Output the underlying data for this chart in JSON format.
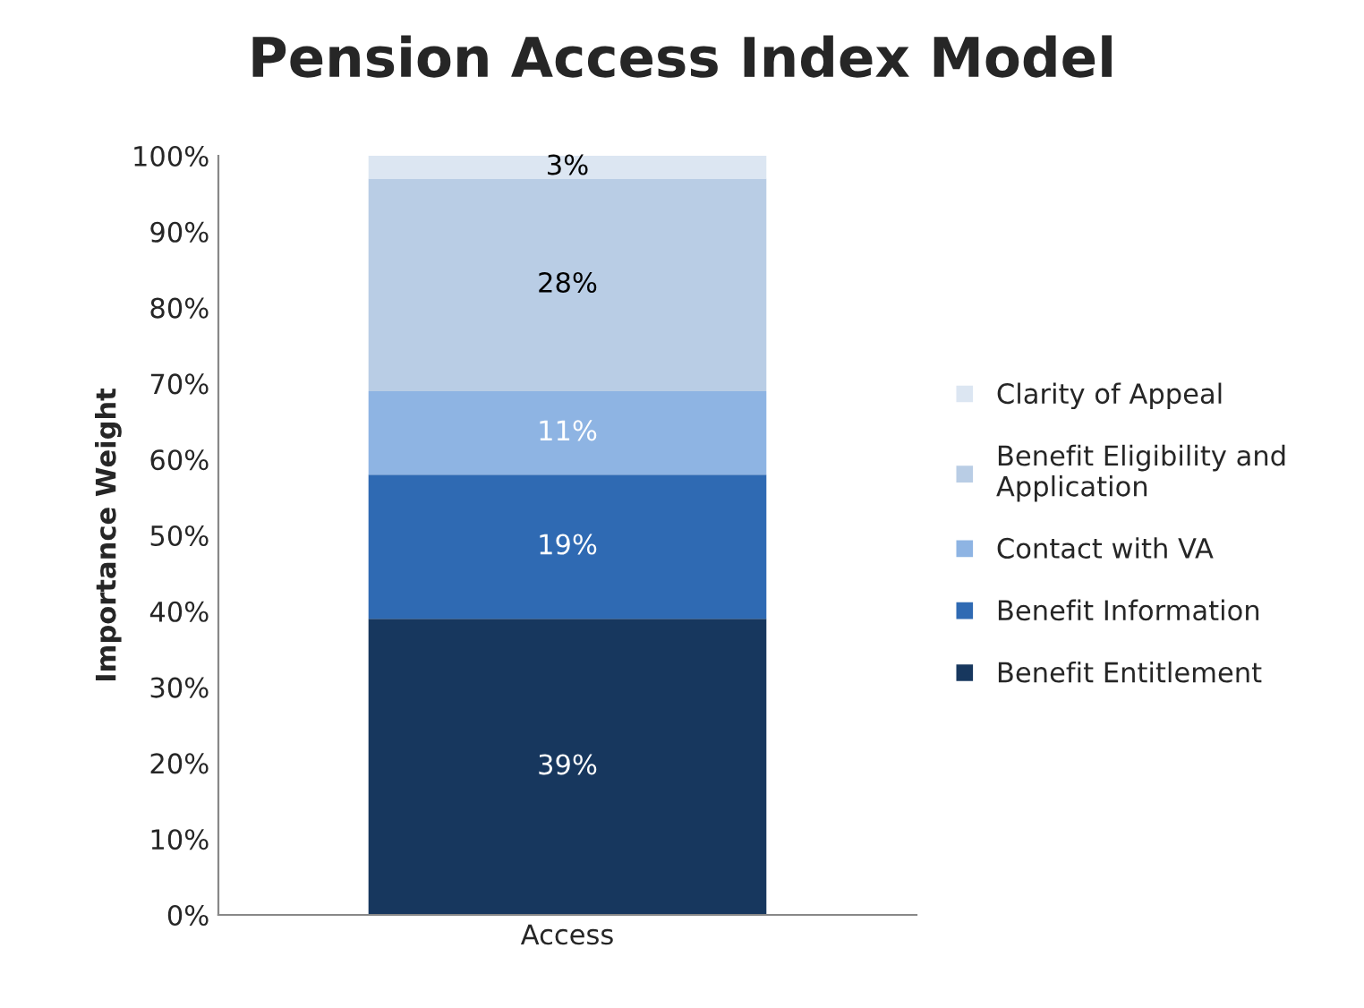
{
  "chart_data": {
    "type": "bar",
    "title": "Pension Access Index Model",
    "ylabel": "Importance Weight",
    "categories": [
      "Access"
    ],
    "stacked": true,
    "legend": "right",
    "grid": false,
    "ylim": [
      0,
      100
    ],
    "yticks": [
      {
        "value": 0,
        "label": "0%"
      },
      {
        "value": 10,
        "label": "10%"
      },
      {
        "value": 20,
        "label": "20%"
      },
      {
        "value": 30,
        "label": "30%"
      },
      {
        "value": 40,
        "label": "40%"
      },
      {
        "value": 50,
        "label": "50%"
      },
      {
        "value": 60,
        "label": "60%"
      },
      {
        "value": 70,
        "label": "70%"
      },
      {
        "value": 80,
        "label": "80%"
      },
      {
        "value": 90,
        "label": "90%"
      },
      {
        "value": 100,
        "label": "100%"
      }
    ],
    "series": [
      {
        "name": "Benefit Entitlement",
        "color": "#17375e",
        "values": [
          39
        ],
        "value_labels": [
          "39%"
        ]
      },
      {
        "name": "Benefit Information",
        "color": "#2f6ab3",
        "values": [
          19
        ],
        "value_labels": [
          "19%"
        ]
      },
      {
        "name": "Contact with VA",
        "color": "#8eb4e3",
        "values": [
          11
        ],
        "value_labels": [
          "11%"
        ]
      },
      {
        "name": "Benefit Eligibility and Application",
        "color": "#b9cde5",
        "values": [
          28
        ],
        "value_labels": [
          "28%"
        ]
      },
      {
        "name": "Clarity of Appeal",
        "color": "#dce6f2",
        "values": [
          3
        ],
        "value_labels": [
          "3%"
        ]
      }
    ]
  }
}
